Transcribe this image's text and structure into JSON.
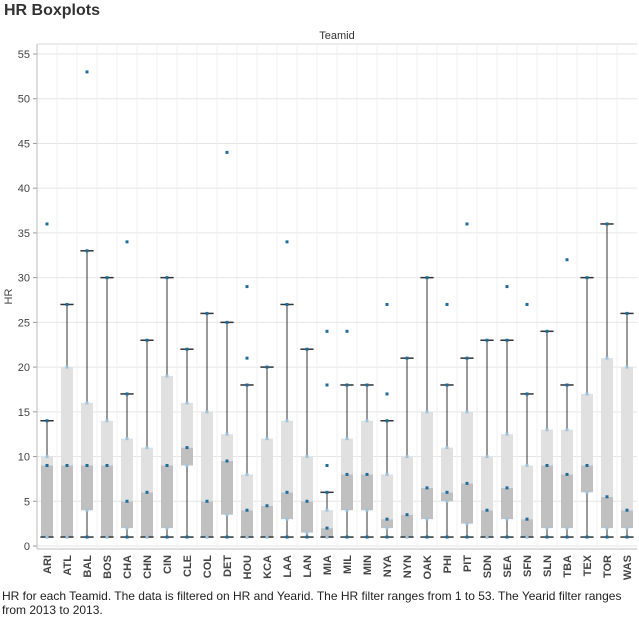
{
  "page_title": "HR Boxplots",
  "caption": "HR for each Teamid. The data is filtered on HR and Yearid. The HR filter ranges from 1 to 53. The Yearid filter ranges from 2013 to 2013.",
  "colors": {
    "upper_box": "#e0e0e0",
    "lower_box": "#c0c0c0",
    "point": "#1f6c9c",
    "point_light": "#9ec3dc",
    "whisker": "#333333",
    "grid": "#e6e6e6",
    "divider": "#d9d9d9"
  },
  "chart_data": {
    "type": "boxplot",
    "header": "Teamid",
    "ylabel": "HR",
    "ylim": [
      0,
      56
    ],
    "yticks": [
      0,
      5,
      10,
      15,
      20,
      25,
      30,
      35,
      40,
      45,
      50,
      55
    ],
    "grid": true,
    "categories": [
      "ARI",
      "ATL",
      "BAL",
      "BOS",
      "CHA",
      "CHN",
      "CIN",
      "CLE",
      "COL",
      "DET",
      "HOU",
      "KCA",
      "LAA",
      "LAN",
      "MIA",
      "MIL",
      "MIN",
      "NYA",
      "NYN",
      "OAK",
      "PHI",
      "PIT",
      "SDN",
      "SEA",
      "SFN",
      "SLN",
      "TBA",
      "TEX",
      "TOR",
      "WAS"
    ],
    "boxes": [
      {
        "min": 1,
        "q1": 1,
        "median": 9,
        "q3": 10,
        "max": 14,
        "outliers": [
          36
        ]
      },
      {
        "min": 1,
        "q1": 1,
        "median": 9,
        "q3": 20,
        "max": 27,
        "outliers": []
      },
      {
        "min": 1,
        "q1": 4,
        "median": 9,
        "q3": 16,
        "max": 33,
        "outliers": [
          53
        ]
      },
      {
        "min": 1,
        "q1": 1,
        "median": 9,
        "q3": 14,
        "max": 30,
        "outliers": []
      },
      {
        "min": 1,
        "q1": 2,
        "median": 5,
        "q3": 12,
        "max": 17,
        "outliers": [
          34
        ]
      },
      {
        "min": 1,
        "q1": 1,
        "median": 6,
        "q3": 11,
        "max": 23,
        "outliers": []
      },
      {
        "min": 1,
        "q1": 2,
        "median": 9,
        "q3": 19,
        "max": 30,
        "outliers": []
      },
      {
        "min": 1,
        "q1": 9,
        "median": 11,
        "q3": 16,
        "max": 22,
        "outliers": []
      },
      {
        "min": 1,
        "q1": 1,
        "median": 5,
        "q3": 15,
        "max": 26,
        "outliers": []
      },
      {
        "min": 1,
        "q1": 3.5,
        "median": 9.5,
        "q3": 12.5,
        "max": 25,
        "outliers": [
          44
        ]
      },
      {
        "min": 1,
        "q1": 1,
        "median": 4,
        "q3": 8,
        "max": 18,
        "outliers": [
          21,
          29
        ]
      },
      {
        "min": 1,
        "q1": 1,
        "median": 4.5,
        "q3": 12,
        "max": 20,
        "outliers": []
      },
      {
        "min": 1,
        "q1": 3,
        "median": 6,
        "q3": 14,
        "max": 27,
        "outliers": [
          34
        ]
      },
      {
        "min": 1,
        "q1": 1.5,
        "median": 5,
        "q3": 10,
        "max": 22,
        "outliers": []
      },
      {
        "min": 1,
        "q1": 1,
        "median": 2,
        "q3": 4,
        "max": 6,
        "outliers": [
          9,
          18,
          24
        ]
      },
      {
        "min": 1,
        "q1": 4,
        "median": 8,
        "q3": 12,
        "max": 18,
        "outliers": [
          24
        ]
      },
      {
        "min": 1,
        "q1": 4,
        "median": 8,
        "q3": 14,
        "max": 18,
        "outliers": []
      },
      {
        "min": 1,
        "q1": 2,
        "median": 3,
        "q3": 8,
        "max": 14,
        "outliers": [
          17,
          27
        ]
      },
      {
        "min": 1,
        "q1": 1,
        "median": 3.5,
        "q3": 10,
        "max": 21,
        "outliers": []
      },
      {
        "min": 1,
        "q1": 3,
        "median": 6.5,
        "q3": 15,
        "max": 30,
        "outliers": []
      },
      {
        "min": 1,
        "q1": 5,
        "median": 6,
        "q3": 11,
        "max": 18,
        "outliers": [
          27
        ]
      },
      {
        "min": 1,
        "q1": 2.5,
        "median": 7,
        "q3": 15,
        "max": 21,
        "outliers": [
          36
        ]
      },
      {
        "min": 1,
        "q1": 1,
        "median": 4,
        "q3": 10,
        "max": 23,
        "outliers": []
      },
      {
        "min": 1,
        "q1": 3,
        "median": 6.5,
        "q3": 12.5,
        "max": 23,
        "outliers": [
          29
        ]
      },
      {
        "min": 1,
        "q1": 1,
        "median": 3,
        "q3": 9,
        "max": 17,
        "outliers": [
          27
        ]
      },
      {
        "min": 1,
        "q1": 2,
        "median": 9,
        "q3": 13,
        "max": 24,
        "outliers": []
      },
      {
        "min": 1,
        "q1": 2,
        "median": 8,
        "q3": 13,
        "max": 18,
        "outliers": [
          32
        ]
      },
      {
        "min": 1,
        "q1": 6,
        "median": 9,
        "q3": 17,
        "max": 30,
        "outliers": []
      },
      {
        "min": 1,
        "q1": 2,
        "median": 5.5,
        "q3": 21,
        "max": 36,
        "outliers": []
      },
      {
        "min": 1,
        "q1": 2,
        "median": 4,
        "q3": 20,
        "max": 26,
        "outliers": []
      }
    ]
  }
}
